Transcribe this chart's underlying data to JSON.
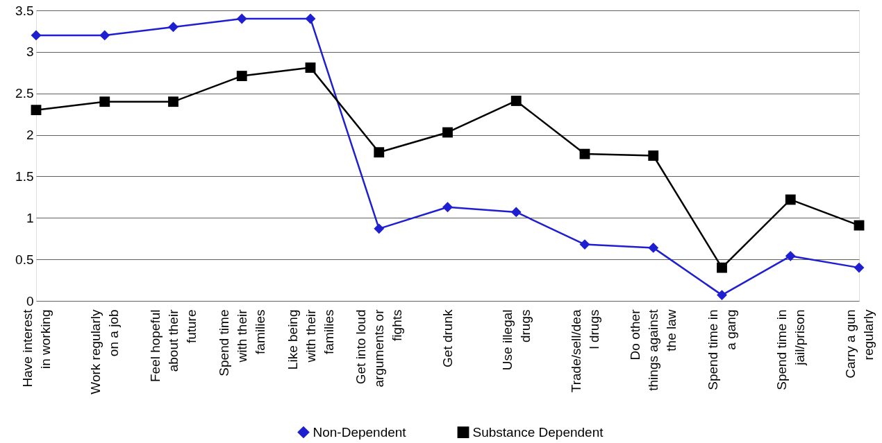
{
  "chart_data": {
    "type": "line",
    "categories": [
      "Have interest in working",
      "Work regularly on a job",
      "Feel hopeful about their future",
      "Spend time with their families",
      "Like being with their families",
      "Get into loud arguments or fights",
      "Get drunk",
      "Use illegal drugs",
      "Trade/sell/deal drugs",
      "Do other things against the law",
      "Spend time in a gang",
      "Spend time in jail/prison",
      "Carry a gun regularly"
    ],
    "series": [
      {
        "name": "Non-Dependent",
        "color": "#1f1fd2",
        "marker": "diamond",
        "values": [
          3.2,
          3.2,
          3.3,
          3.4,
          3.4,
          0.87,
          1.13,
          1.07,
          0.68,
          0.64,
          0.07,
          0.54,
          0.4
        ]
      },
      {
        "name": "Substance Dependent",
        "color": "#000000",
        "marker": "square",
        "values": [
          2.3,
          2.4,
          2.4,
          2.71,
          2.81,
          1.79,
          2.03,
          2.41,
          1.77,
          1.75,
          0.4,
          1.22,
          0.91
        ]
      }
    ],
    "ylim": [
      0,
      3.5
    ],
    "yticks": [
      0,
      0.5,
      1,
      1.5,
      2,
      2.5,
      3,
      3.5
    ],
    "grid": "y",
    "legend": "bottom",
    "line_style": "solid"
  }
}
